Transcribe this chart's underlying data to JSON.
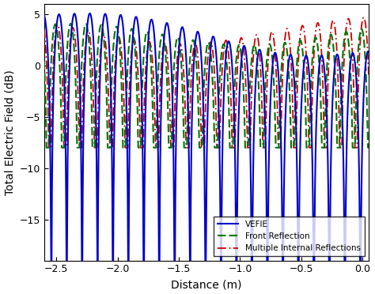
{
  "title": "",
  "xlabel": "Distance (m)",
  "ylabel": "Total Electric Field (dB)",
  "xlim": [
    -2.6,
    0.05
  ],
  "ylim": [
    -19,
    6
  ],
  "xticks": [
    -2.5,
    -2.0,
    -1.5,
    -1.0,
    -0.5,
    0.0
  ],
  "yticks": [
    -15,
    -10,
    -5,
    0,
    5
  ],
  "line_vefie_color": "#0000CC",
  "line_front_color": "#007700",
  "line_mir_color": "#CC0000",
  "legend_labels": [
    "VEFIE",
    "Front Reflection",
    "Multiple Internal Reflections"
  ],
  "background_color": "#ffffff",
  "n_points": 5000,
  "x_start": -2.6,
  "x_end": 0.05
}
